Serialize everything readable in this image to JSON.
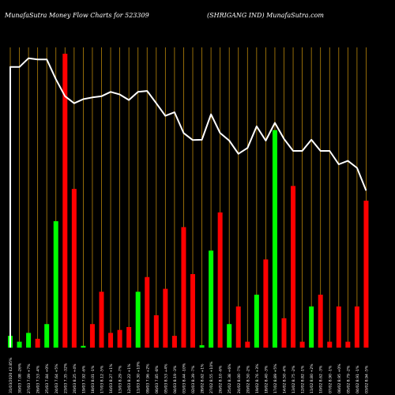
{
  "header": {
    "left": "MunafaSutra  Money Flow  Charts for 523309",
    "right": "(SHRIGANG IND) MunafaSutra.com"
  },
  "colors": {
    "background": "#000000",
    "up": "#00ff00",
    "down": "#ff0000",
    "gridline": "#b8860b",
    "price_line": "#ffffff",
    "text": "#ffffff"
  },
  "chart_data": {
    "type": "bar",
    "title": "MunafaSutra  Money Flow  Charts for 523309",
    "subtitle": "(SHRIGANG IND) MunafaSutra.com",
    "grid": true,
    "bar_range": [
      0,
      100
    ],
    "price_range": [
      0,
      100
    ],
    "bars": [
      {
        "label": "31/03/2020 42.85%",
        "value": 4,
        "direction": "up"
      },
      {
        "label": "30/03 7.08 -26%",
        "value": 2,
        "direction": "up"
      },
      {
        "label": "27/03 7.09 +7%",
        "value": 5,
        "direction": "up"
      },
      {
        "label": "26/03 7.53 -4%",
        "value": 3,
        "direction": "down"
      },
      {
        "label": "25/03 7.84 +0%",
        "value": 8,
        "direction": "up"
      },
      {
        "label": "24/03 7.64 +5%",
        "value": 43,
        "direction": "up"
      },
      {
        "label": "23/03 7.35 -32%",
        "value": 100,
        "direction": "down"
      },
      {
        "label": "20/03 8.25 +4%",
        "value": 54,
        "direction": "down"
      },
      {
        "label": "19/03 7.92 -6%",
        "value": 0.6,
        "direction": "up"
      },
      {
        "label": "18/03 8.01 -1%",
        "value": 8,
        "direction": "down"
      },
      {
        "label": "17/03 8.12 -5%",
        "value": 19,
        "direction": "down"
      },
      {
        "label": "16/03 8.27 +1%",
        "value": 5,
        "direction": "down"
      },
      {
        "label": "13/03 8.29 -7%",
        "value": 6,
        "direction": "down"
      },
      {
        "label": "12/03 8.22 +1%",
        "value": 7,
        "direction": "down"
      },
      {
        "label": "11/03 8.30 +10%",
        "value": 19,
        "direction": "up"
      },
      {
        "label": "09/03 7.96 +2%",
        "value": 24,
        "direction": "down"
      },
      {
        "label": "06/03 7.85 -8%",
        "value": 11,
        "direction": "down"
      },
      {
        "label": "05/03 8.53 +4%",
        "value": 20,
        "direction": "down"
      },
      {
        "label": "04/03 8.19 -3%",
        "value": 4,
        "direction": "down"
      },
      {
        "label": "03/03 8.44 -10%",
        "value": 41,
        "direction": "down"
      },
      {
        "label": "02/03 8.39 -7%",
        "value": 25,
        "direction": "down"
      },
      {
        "label": "28/02 8.62 +1%",
        "value": 0.8,
        "direction": "up"
      },
      {
        "label": "27/02 8.55 +10%",
        "value": 33,
        "direction": "up"
      },
      {
        "label": "26/02 8.10 -6%",
        "value": 46,
        "direction": "down"
      },
      {
        "label": "25/02 8.38 +6%",
        "value": 8,
        "direction": "up"
      },
      {
        "label": "24/02 8.00 -7%",
        "value": 14,
        "direction": "down"
      },
      {
        "label": "20/02 8.50 -2%",
        "value": 2,
        "direction": "down"
      },
      {
        "label": "19/02 8.76 +3%",
        "value": 18,
        "direction": "up"
      },
      {
        "label": "18/02 8.40 -3%",
        "value": 30,
        "direction": "down"
      },
      {
        "label": "17/02 8.89 +5%",
        "value": 74,
        "direction": "up"
      },
      {
        "label": "14/02 8.50 -4%",
        "value": 10,
        "direction": "down"
      },
      {
        "label": "13/02 8.75 -2%",
        "value": 55,
        "direction": "down"
      },
      {
        "label": "12/02 8.82 -1%",
        "value": 2,
        "direction": "down"
      },
      {
        "label": "11/02 8.80 +2%",
        "value": 14,
        "direction": "up"
      },
      {
        "label": "10/02 8.62 -3%",
        "value": 18,
        "direction": "down"
      },
      {
        "label": "07/02 8.90 -1%",
        "value": 2,
        "direction": "down"
      },
      {
        "label": "06/02 8.95 +0%",
        "value": 14,
        "direction": "down"
      },
      {
        "label": "05/02 8.79 -2%",
        "value": 2,
        "direction": "down"
      },
      {
        "label": "04/02 8.91 -1%",
        "value": 14,
        "direction": "down"
      },
      {
        "label": "03/02 8.94 -5%",
        "value": 50,
        "direction": "down"
      }
    ],
    "price_line": [
      96,
      96,
      99,
      98.6,
      98.6,
      91.8,
      86,
      83.6,
      85,
      85.6,
      86,
      87.5,
      86.6,
      84.7,
      87.5,
      87.8,
      83.6,
      79.3,
      80.5,
      73.4,
      71,
      71.1,
      79.8,
      73.4,
      70.8,
      66.3,
      68.3,
      75.7,
      70.8,
      76.9,
      71.4,
      67.3,
      67.3,
      71.1,
      67.3,
      67.3,
      62.7,
      63.9,
      61.5,
      53.7
    ]
  }
}
